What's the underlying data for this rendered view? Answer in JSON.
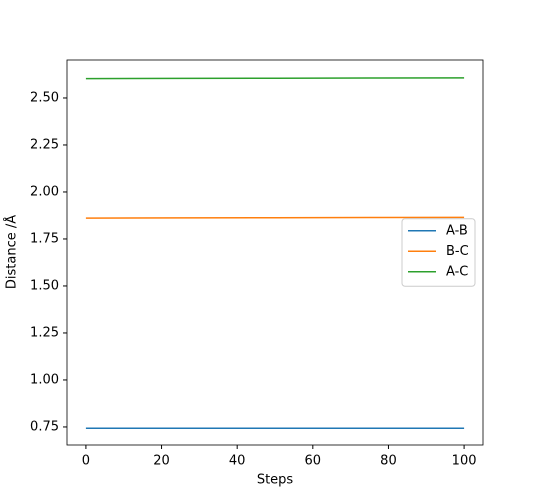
{
  "chart_data": {
    "type": "line",
    "xlabel": "Steps",
    "ylabel": "Distance /Å",
    "x": [
      0,
      25,
      50,
      75,
      100
    ],
    "series": [
      {
        "name": "A-B",
        "color": "#1f77b4",
        "values": [
          0.743,
          0.743,
          0.743,
          0.743,
          0.743
        ]
      },
      {
        "name": "B-C",
        "color": "#ff7f0e",
        "values": [
          1.861,
          1.862,
          1.863,
          1.864,
          1.865
        ]
      },
      {
        "name": "A-C",
        "color": "#2ca02c",
        "values": [
          2.603,
          2.604,
          2.605,
          2.606,
          2.607
        ]
      }
    ],
    "xlim": [
      -5,
      105
    ],
    "xticks": [
      0,
      20,
      40,
      60,
      80,
      100
    ],
    "ylim": [
      0.654,
      2.702
    ],
    "yticks": [
      0.75,
      {
        "value": 1.0,
        "label": "1.00"
      },
      1.25,
      {
        "value": 1.5,
        "label": "1.50"
      },
      1.75,
      {
        "value": 2.0,
        "label": "2.00"
      },
      2.25,
      {
        "value": 2.5,
        "label": "2.50"
      }
    ],
    "legend": "center right",
    "grid": false
  }
}
